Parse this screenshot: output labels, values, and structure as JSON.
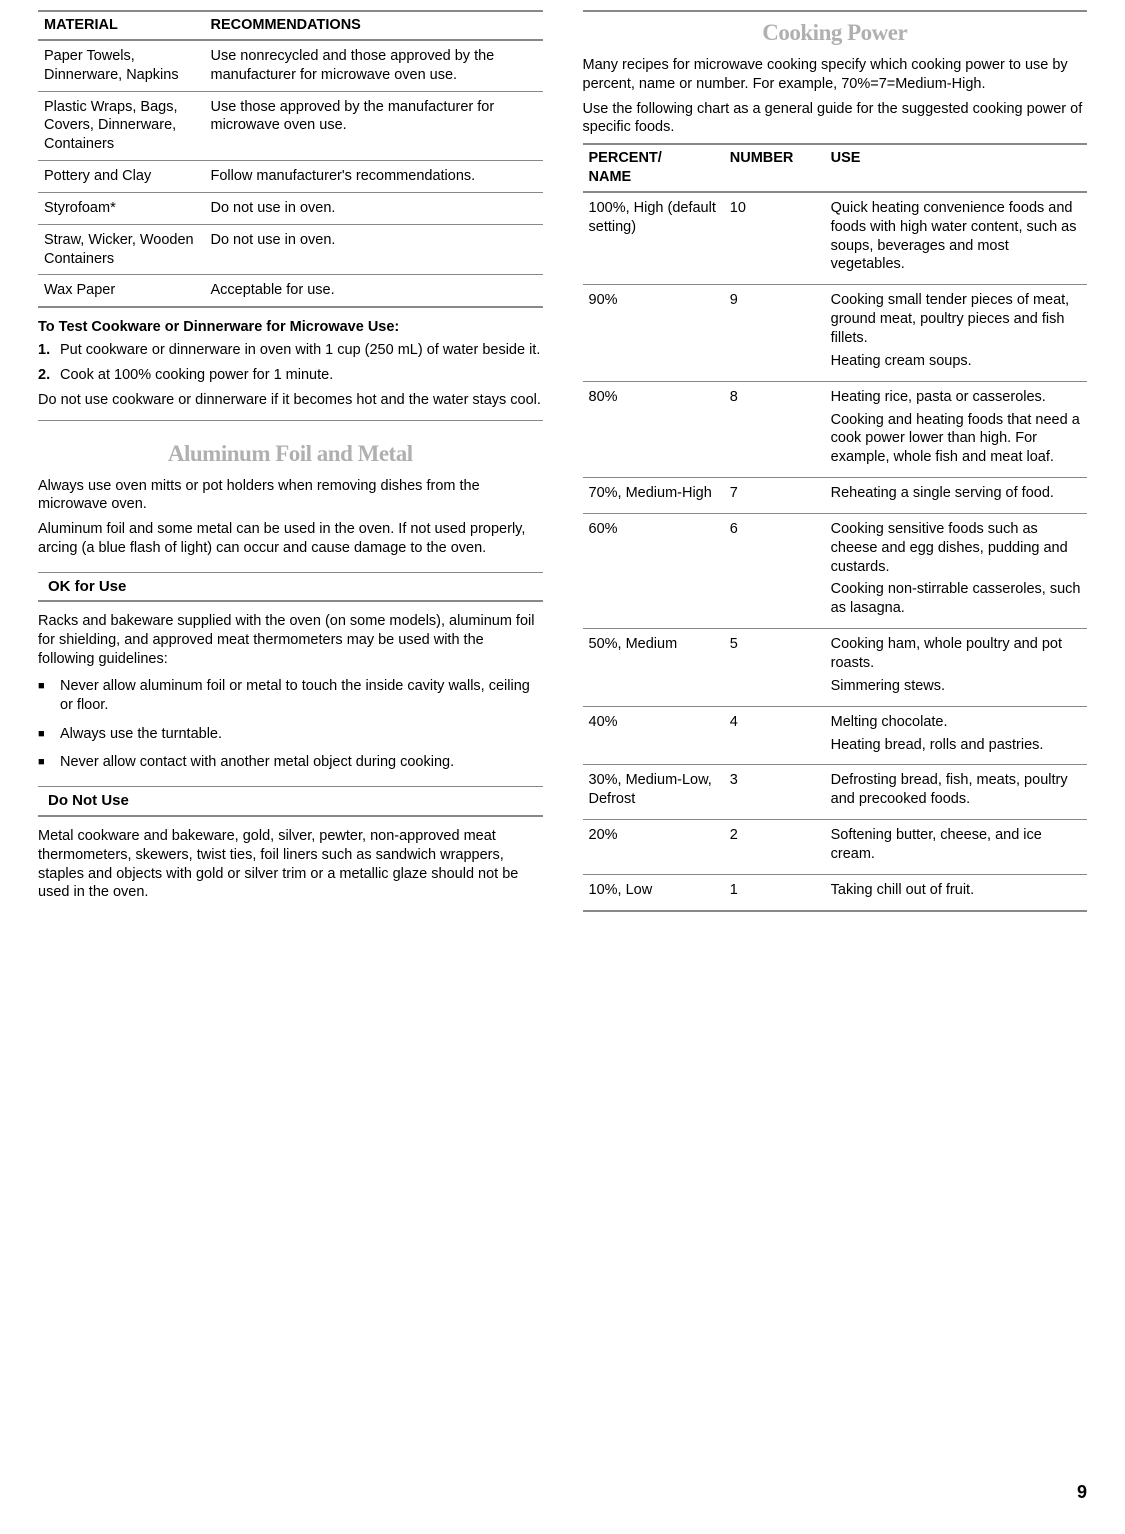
{
  "materials_table": {
    "headers": [
      "MATERIAL",
      "RECOMMENDATIONS"
    ],
    "rows": [
      [
        "Paper Towels, Dinnerware, Napkins",
        "Use nonrecycled and those approved by the manufacturer for microwave oven use."
      ],
      [
        "Plastic Wraps, Bags, Covers, Dinnerware, Containers",
        "Use those approved by the manufacturer for microwave oven use."
      ],
      [
        "Pottery and Clay",
        "Follow manufacturer's recommendations."
      ],
      [
        "Styrofoam*",
        "Do not use in oven."
      ],
      [
        "Straw, Wicker, Wooden Containers",
        "Do not use in oven."
      ],
      [
        "Wax Paper",
        "Acceptable for use."
      ]
    ]
  },
  "test_heading": "To Test Cookware or Dinnerware for Microwave Use:",
  "test_steps": [
    "Put cookware or dinnerware in oven with 1 cup (250 mL) of water beside it.",
    "Cook at 100% cooking power for 1 minute."
  ],
  "test_note": "Do not use cookware or dinnerware if it becomes hot and the water stays cool.",
  "foil_title": "Aluminum Foil and Metal",
  "foil_p1": "Always use oven mitts or pot holders when removing dishes from the microwave oven.",
  "foil_p2": "Aluminum foil and some metal can be used in the oven. If not used properly, arcing (a blue flash of light) can occur and cause damage to the oven.",
  "ok_heading": "OK for Use",
  "ok_intro": "Racks and bakeware supplied with the oven (on some models), aluminum foil for shielding, and approved meat thermometers may be used with the following guidelines:",
  "ok_bullets": [
    "Never allow aluminum foil or metal to touch the inside cavity walls, ceiling or floor.",
    "Always use the turntable.",
    "Never allow contact with another metal object during cooking."
  ],
  "dont_heading": "Do Not Use",
  "dont_text": "Metal cookware and bakeware, gold, silver, pewter, non-approved meat thermometers, skewers, twist ties, foil liners such as sandwich wrappers, staples and objects with gold or silver trim or a metallic glaze should not be used in the oven.",
  "power_title": "Cooking Power",
  "power_p1": "Many recipes for microwave cooking specify which cooking power to use by percent, name or number. For example, 70%=7=Medium-High.",
  "power_p2": "Use the following chart as a general guide for the suggested cooking power of specific foods.",
  "power_table": {
    "headers": [
      "PERCENT/\nNAME",
      "NUMBER",
      "USE"
    ],
    "rows": [
      {
        "pct": "100%, High (default setting)",
        "num": "10",
        "uses": [
          "Quick heating convenience foods and foods with high water content, such as soups, beverages and most vegetables."
        ]
      },
      {
        "pct": "90%",
        "num": "9",
        "uses": [
          "Cooking small tender pieces of meat, ground meat, poultry pieces and fish fillets.",
          "Heating cream soups."
        ]
      },
      {
        "pct": "80%",
        "num": "8",
        "uses": [
          "Heating rice, pasta or casseroles.",
          "Cooking and heating foods that need a cook power lower than high. For example, whole fish and meat loaf."
        ]
      },
      {
        "pct": "70%, Medium-High",
        "num": "7",
        "uses": [
          "Reheating a single serving of food."
        ]
      },
      {
        "pct": "60%",
        "num": "6",
        "uses": [
          "Cooking sensitive foods such as cheese and egg dishes, pudding and custards.",
          "Cooking non-stirrable casseroles, such as lasagna."
        ]
      },
      {
        "pct": "50%, Medium",
        "num": "5",
        "uses": [
          "Cooking ham, whole poultry and pot roasts.",
          "Simmering stews."
        ]
      },
      {
        "pct": "40%",
        "num": "4",
        "uses": [
          "Melting chocolate.",
          "Heating bread, rolls and pastries."
        ]
      },
      {
        "pct": "30%, Medium-Low, Defrost",
        "num": "3",
        "uses": [
          "Defrosting bread, fish, meats, poultry and precooked foods."
        ]
      },
      {
        "pct": "20%",
        "num": "2",
        "uses": [
          "Softening butter, cheese, and ice cream."
        ]
      },
      {
        "pct": "10%, Low",
        "num": "1",
        "uses": [
          "Taking chill out of fruit."
        ]
      }
    ]
  },
  "page_number": "9"
}
